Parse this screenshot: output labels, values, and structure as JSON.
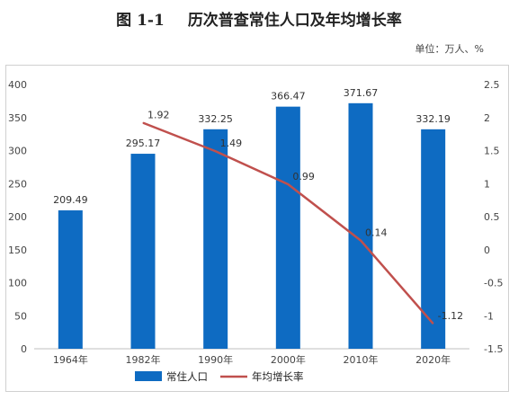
{
  "header": {
    "figure_number": "图 1-1",
    "title": "历次普查常住人口及年均增长率",
    "unit": "单位：万人、%"
  },
  "chart_data": {
    "type": "bar",
    "categories": [
      "1964年",
      "1982年",
      "1990年",
      "2000年",
      "2010年",
      "2020年"
    ],
    "series": [
      {
        "name": "常住人口",
        "type": "bar",
        "axis": "left",
        "values": [
          209.49,
          295.17,
          332.25,
          366.47,
          371.67,
          332.19
        ],
        "value_labels": [
          "209.49",
          "295.17",
          "332.25",
          "366.47",
          "371.67",
          "332.19"
        ],
        "color": "#0e6bc2"
      },
      {
        "name": "年均增长率",
        "type": "line",
        "axis": "right",
        "values": [
          null,
          1.92,
          1.49,
          0.99,
          0.14,
          -1.12
        ],
        "value_labels": [
          "",
          "1.92",
          "1.49",
          "0.99",
          "0.14",
          "-1.12"
        ],
        "color": "#c0504d"
      }
    ],
    "y_left": {
      "min": 0,
      "max": 400,
      "ticks": [
        "0",
        "50",
        "100",
        "150",
        "200",
        "250",
        "300",
        "350",
        "400"
      ]
    },
    "y_right": {
      "min": -1.5,
      "max": 2.5,
      "ticks": [
        "-1.5",
        "-1",
        "-0.5",
        "0",
        "0.5",
        "1",
        "1.5",
        "2",
        "2.5"
      ]
    },
    "grid": false,
    "legend_position": "bottom"
  }
}
